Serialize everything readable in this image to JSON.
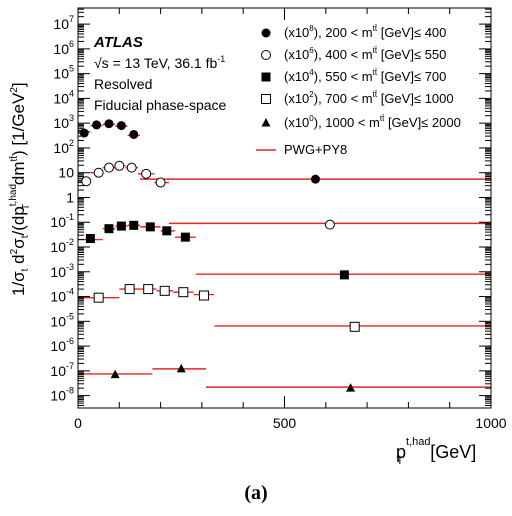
{
  "figure": {
    "panel_label": "(a)"
  },
  "chart_data": {
    "type": "scatter",
    "yscale": "log",
    "xlim": [
      0,
      1000
    ],
    "ylim_exponents": [
      -8.5,
      7.65
    ],
    "xlabel": {
      "main": "p",
      "sub": "T",
      "sup": "t,had",
      "unit": " [GeV]"
    },
    "ylabel": {
      "t1": "1/σ",
      "s1": "t",
      "t2": " d",
      "sp2": "2",
      "t3": "σ",
      "s3": "t",
      "t4": "/(dp",
      "sp4": "t,had",
      "s4": "T",
      "t5": " dm",
      "sp5": "tt̄",
      "t6": ") [1/GeV",
      "sp6": "2",
      "t7": "]"
    },
    "x_ticks": [
      {
        "value": 0,
        "label": "0"
      },
      {
        "value": 500,
        "label": "500"
      },
      {
        "value": 1000,
        "label": "1000"
      }
    ],
    "y_ticks": [
      {
        "exp": 7,
        "base": "10",
        "sup": "7"
      },
      {
        "exp": 6,
        "base": "10",
        "sup": "6"
      },
      {
        "exp": 5,
        "base": "10",
        "sup": "5"
      },
      {
        "exp": 4,
        "base": "10",
        "sup": "4"
      },
      {
        "exp": 3,
        "base": "10",
        "sup": "3"
      },
      {
        "exp": 2,
        "base": "10",
        "sup": "2"
      },
      {
        "exp": 1,
        "base": "10",
        "sup": ""
      },
      {
        "exp": 0,
        "base": "1",
        "sup": ""
      },
      {
        "exp": -1,
        "base": "10",
        "sup": "-1"
      },
      {
        "exp": -2,
        "base": "10",
        "sup": "-2"
      },
      {
        "exp": -3,
        "base": "10",
        "sup": "-3"
      },
      {
        "exp": -4,
        "base": "10",
        "sup": "-4"
      },
      {
        "exp": -5,
        "base": "10",
        "sup": "-5"
      },
      {
        "exp": -6,
        "base": "10",
        "sup": "-6"
      },
      {
        "exp": -7,
        "base": "10",
        "sup": "-7"
      },
      {
        "exp": -8,
        "base": "10",
        "sup": "-8"
      }
    ],
    "annotations": {
      "atlas": "ATLAS",
      "energy_pre": "√s = 13 TeV, 36.1 fb",
      "energy_sup": "-1",
      "line2": "Resolved",
      "line3": "Fiducial phase-space"
    },
    "series": [
      {
        "name_scale": "(x10",
        "name_scale_sup": "8",
        "name_range": "), 200 < m",
        "name_range_sup": "tt̄",
        "name_tail": " [GeV]≤ 400",
        "marker": "circle-filled",
        "points": [
          {
            "x": 15,
            "y": 400.0
          },
          {
            "x": 45,
            "y": 850.0
          },
          {
            "x": 75,
            "y": 950.0
          },
          {
            "x": 105,
            "y": 800.0
          },
          {
            "x": 135,
            "y": 350.0
          },
          {
            "x": 575,
            "y": 5.5
          }
        ],
        "prediction": [
          {
            "x_low": 0,
            "x_high": 30,
            "y": 450.0
          },
          {
            "x_low": 30,
            "x_high": 60,
            "y": 800.0
          },
          {
            "x_low": 60,
            "x_high": 90,
            "y": 900.0
          },
          {
            "x_low": 90,
            "x_high": 120,
            "y": 750.0
          },
          {
            "x_low": 120,
            "x_high": 150,
            "y": 320.0
          },
          {
            "x_low": 150,
            "x_high": 1000,
            "y": 5.5
          }
        ]
      },
      {
        "name_scale": "(x10",
        "name_scale_sup": "6",
        "name_range": "), 400 < m",
        "name_range_sup": "tt̄",
        "name_tail": " [GeV]≤ 550",
        "marker": "circle-open",
        "points": [
          {
            "x": 20,
            "y": 4.5
          },
          {
            "x": 50,
            "y": 10.0
          },
          {
            "x": 75,
            "y": 16.0
          },
          {
            "x": 100,
            "y": 19.0
          },
          {
            "x": 130,
            "y": 16.0
          },
          {
            "x": 165,
            "y": 9.0
          },
          {
            "x": 200,
            "y": 4.0
          },
          {
            "x": 610,
            "y": 0.08
          }
        ],
        "prediction": [
          {
            "x_low": 0,
            "x_high": 30,
            "y": 4.5
          },
          {
            "x_low": 30,
            "x_high": 60,
            "y": 10.0
          },
          {
            "x_low": 60,
            "x_high": 90,
            "y": 16.0
          },
          {
            "x_low": 90,
            "x_high": 115,
            "y": 19.0
          },
          {
            "x_low": 115,
            "x_high": 145,
            "y": 16.0
          },
          {
            "x_low": 145,
            "x_high": 185,
            "y": 9.0
          },
          {
            "x_low": 185,
            "x_high": 220,
            "y": 4.0
          },
          {
            "x_low": 220,
            "x_high": 1000,
            "y": 0.09
          }
        ]
      },
      {
        "name_scale": "(x10",
        "name_scale_sup": "4",
        "name_range": "), 550 < m",
        "name_range_sup": "tt̄",
        "name_tail": " [GeV]≤ 700",
        "marker": "square-filled",
        "points": [
          {
            "x": 30,
            "y": 0.022
          },
          {
            "x": 75,
            "y": 0.055
          },
          {
            "x": 105,
            "y": 0.07
          },
          {
            "x": 135,
            "y": 0.075
          },
          {
            "x": 175,
            "y": 0.065
          },
          {
            "x": 215,
            "y": 0.045
          },
          {
            "x": 260,
            "y": 0.025
          },
          {
            "x": 645,
            "y": 0.00075
          }
        ],
        "prediction": [
          {
            "x_low": 0,
            "x_high": 60,
            "y": 0.02
          },
          {
            "x_low": 60,
            "x_high": 90,
            "y": 0.055
          },
          {
            "x_low": 90,
            "x_high": 120,
            "y": 0.07
          },
          {
            "x_low": 120,
            "x_high": 150,
            "y": 0.075
          },
          {
            "x_low": 150,
            "x_high": 200,
            "y": 0.065
          },
          {
            "x_low": 200,
            "x_high": 235,
            "y": 0.045
          },
          {
            "x_low": 235,
            "x_high": 285,
            "y": 0.025
          },
          {
            "x_low": 285,
            "x_high": 1000,
            "y": 0.0008
          }
        ]
      },
      {
        "name_scale": "(x10",
        "name_scale_sup": "2",
        "name_range": "), 700 < m",
        "name_range_sup": "tt̄",
        "name_tail": " [GeV]≤ 1000",
        "marker": "square-open",
        "points": [
          {
            "x": 50,
            "y": 9e-05
          },
          {
            "x": 125,
            "y": 0.0002
          },
          {
            "x": 170,
            "y": 0.0002
          },
          {
            "x": 210,
            "y": 0.00017
          },
          {
            "x": 255,
            "y": 0.00015
          },
          {
            "x": 305,
            "y": 0.00011
          },
          {
            "x": 670,
            "y": 6e-06
          }
        ],
        "prediction": [
          {
            "x_low": 0,
            "x_high": 100,
            "y": 9e-05
          },
          {
            "x_low": 100,
            "x_high": 150,
            "y": 0.0002
          },
          {
            "x_low": 150,
            "x_high": 190,
            "y": 0.0002
          },
          {
            "x_low": 190,
            "x_high": 230,
            "y": 0.00017
          },
          {
            "x_low": 230,
            "x_high": 280,
            "y": 0.00015
          },
          {
            "x_low": 280,
            "x_high": 330,
            "y": 0.00012
          },
          {
            "x_low": 330,
            "x_high": 1000,
            "y": 6.5e-06
          }
        ]
      },
      {
        "name_scale": "(x10",
        "name_scale_sup": "0",
        "name_range": "), 1000 < m",
        "name_range_sup": "tt̄",
        "name_tail": " [GeV]≤ 2000",
        "marker": "triangle-filled",
        "points": [
          {
            "x": 90,
            "y": 7e-08
          },
          {
            "x": 250,
            "y": 1.2e-07
          },
          {
            "x": 660,
            "y": 2e-08
          }
        ],
        "prediction": [
          {
            "x_low": 0,
            "x_high": 180,
            "y": 7.5e-08
          },
          {
            "x_low": 180,
            "x_high": 310,
            "y": 1.2e-07
          },
          {
            "x_low": 310,
            "x_high": 1000,
            "y": 2.2e-08
          }
        ]
      }
    ],
    "prediction_legend": "PWG+PY8",
    "colors": {
      "prediction": "#e8281e",
      "marker": "#000000",
      "axis": "#000000"
    }
  }
}
